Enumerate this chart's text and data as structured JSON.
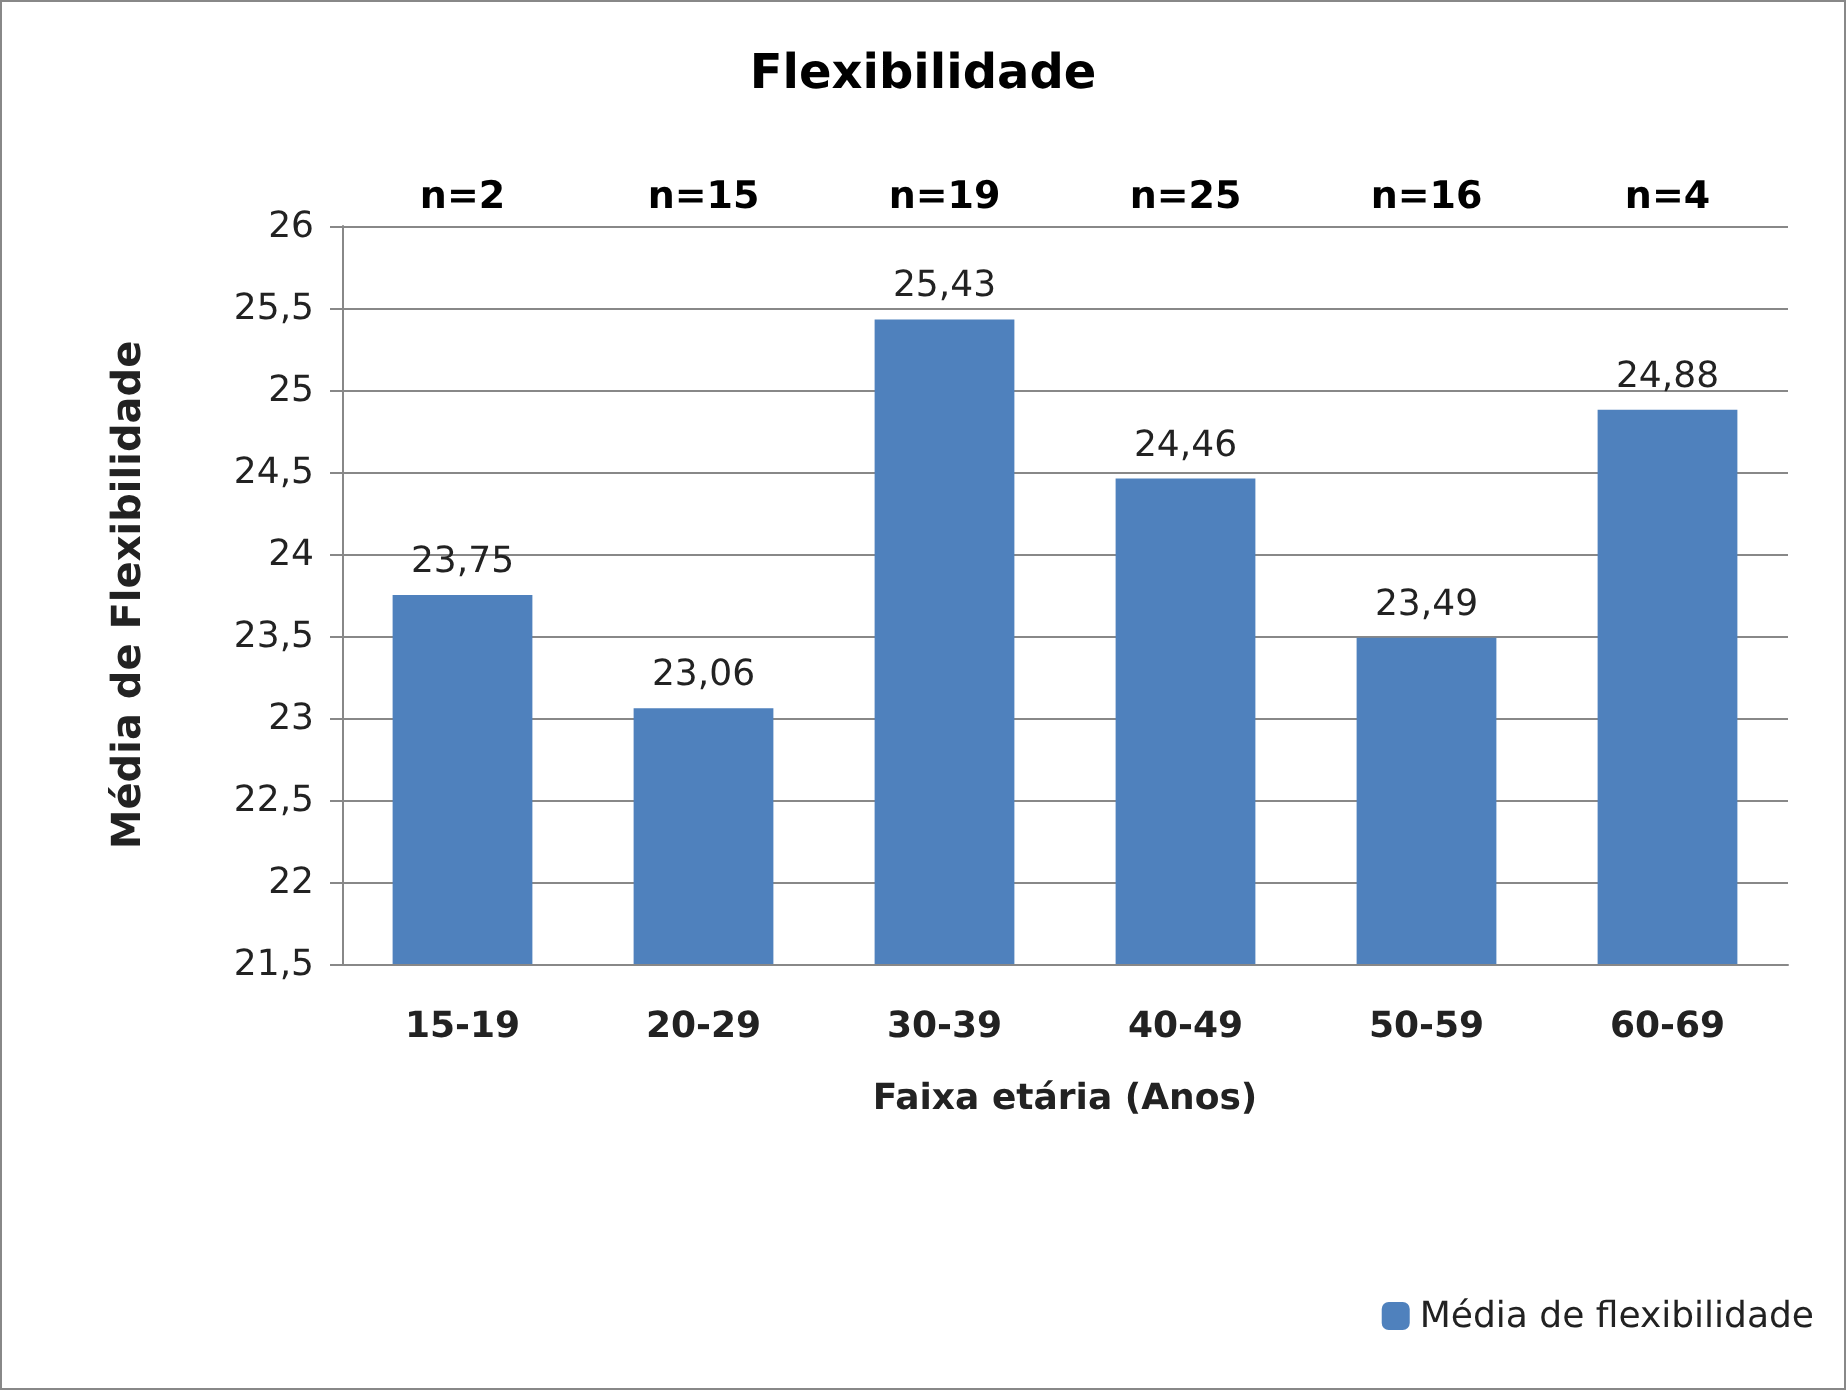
{
  "chart_data": {
    "type": "bar",
    "title": "Flexibilidade",
    "xlabel": "Faixa etária (Anos)",
    "ylabel": "Média de Flexibilidade",
    "categories": [
      "15-19",
      "20-29",
      "30-39",
      "40-49",
      "50-59",
      "60-69"
    ],
    "series": [
      {
        "name": "Média de flexibilidade",
        "color": "#4f81bd",
        "values": [
          23.75,
          23.06,
          25.43,
          24.46,
          23.49,
          24.88
        ],
        "value_labels": [
          "23,75",
          "23,06",
          "25,43",
          "24,46",
          "23,49",
          "24,88"
        ]
      }
    ],
    "ylim": [
      21.5,
      26
    ],
    "yticks": [
      {
        "value": 21.5,
        "label": "21,5"
      },
      {
        "value": 22,
        "label": "22"
      },
      {
        "value": 22.5,
        "label": "22,5"
      },
      {
        "value": 23,
        "label": "23"
      },
      {
        "value": 23.5,
        "label": "23,5"
      },
      {
        "value": 24,
        "label": "24"
      },
      {
        "value": 24.5,
        "label": "24,5"
      },
      {
        "value": 25,
        "label": "25"
      },
      {
        "value": 25.5,
        "label": "25,5"
      },
      {
        "value": 26,
        "label": "26"
      }
    ],
    "annotations": [
      "n=2",
      "n=15",
      "n=19",
      "n=25",
      "n=16",
      "n=4"
    ],
    "grid": "y",
    "legend": "bottom right"
  }
}
